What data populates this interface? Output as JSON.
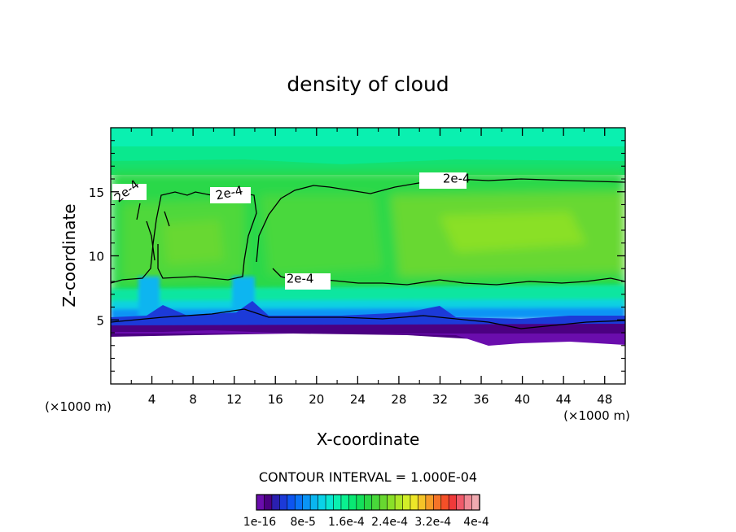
{
  "chart_data": {
    "type": "heatmap",
    "title": "density of cloud",
    "xlabel": "X-coordinate",
    "ylabel": "Z-coordinate",
    "x_unit": "(×1000 m)",
    "y_unit": "(×1000 m)",
    "xlim": [
      0,
      50
    ],
    "ylim": [
      0,
      20
    ],
    "x_ticks": [
      4,
      8,
      12,
      16,
      20,
      24,
      28,
      32,
      36,
      40,
      44,
      48
    ],
    "y_ticks": [
      5,
      10,
      15
    ],
    "contour_label": "2e-4",
    "contour_interval_text": "CONTOUR INTERVAL = 1.000E-04",
    "colorbar": {
      "colors": [
        "#6a0dad",
        "#4b0082",
        "#2a1fb0",
        "#1c3ad8",
        "#0d55f0",
        "#0a74f7",
        "#0a94f5",
        "#0ab5f0",
        "#0ad2e8",
        "#0ae6d2",
        "#0af0b0",
        "#0af090",
        "#0ae873",
        "#14e05a",
        "#2ad845",
        "#48d83a",
        "#68d830",
        "#8ae028",
        "#aee828",
        "#d2ee28",
        "#eee628",
        "#f5c428",
        "#f59c28",
        "#f57428",
        "#f55028",
        "#f03a3a",
        "#f05a6a",
        "#f08a96",
        "#f0aab0"
      ],
      "tick_labels": [
        "1e-16",
        "8e-5",
        "1.6e-4",
        "2.4e-4",
        "3.2e-4",
        "4e-4"
      ]
    }
  }
}
